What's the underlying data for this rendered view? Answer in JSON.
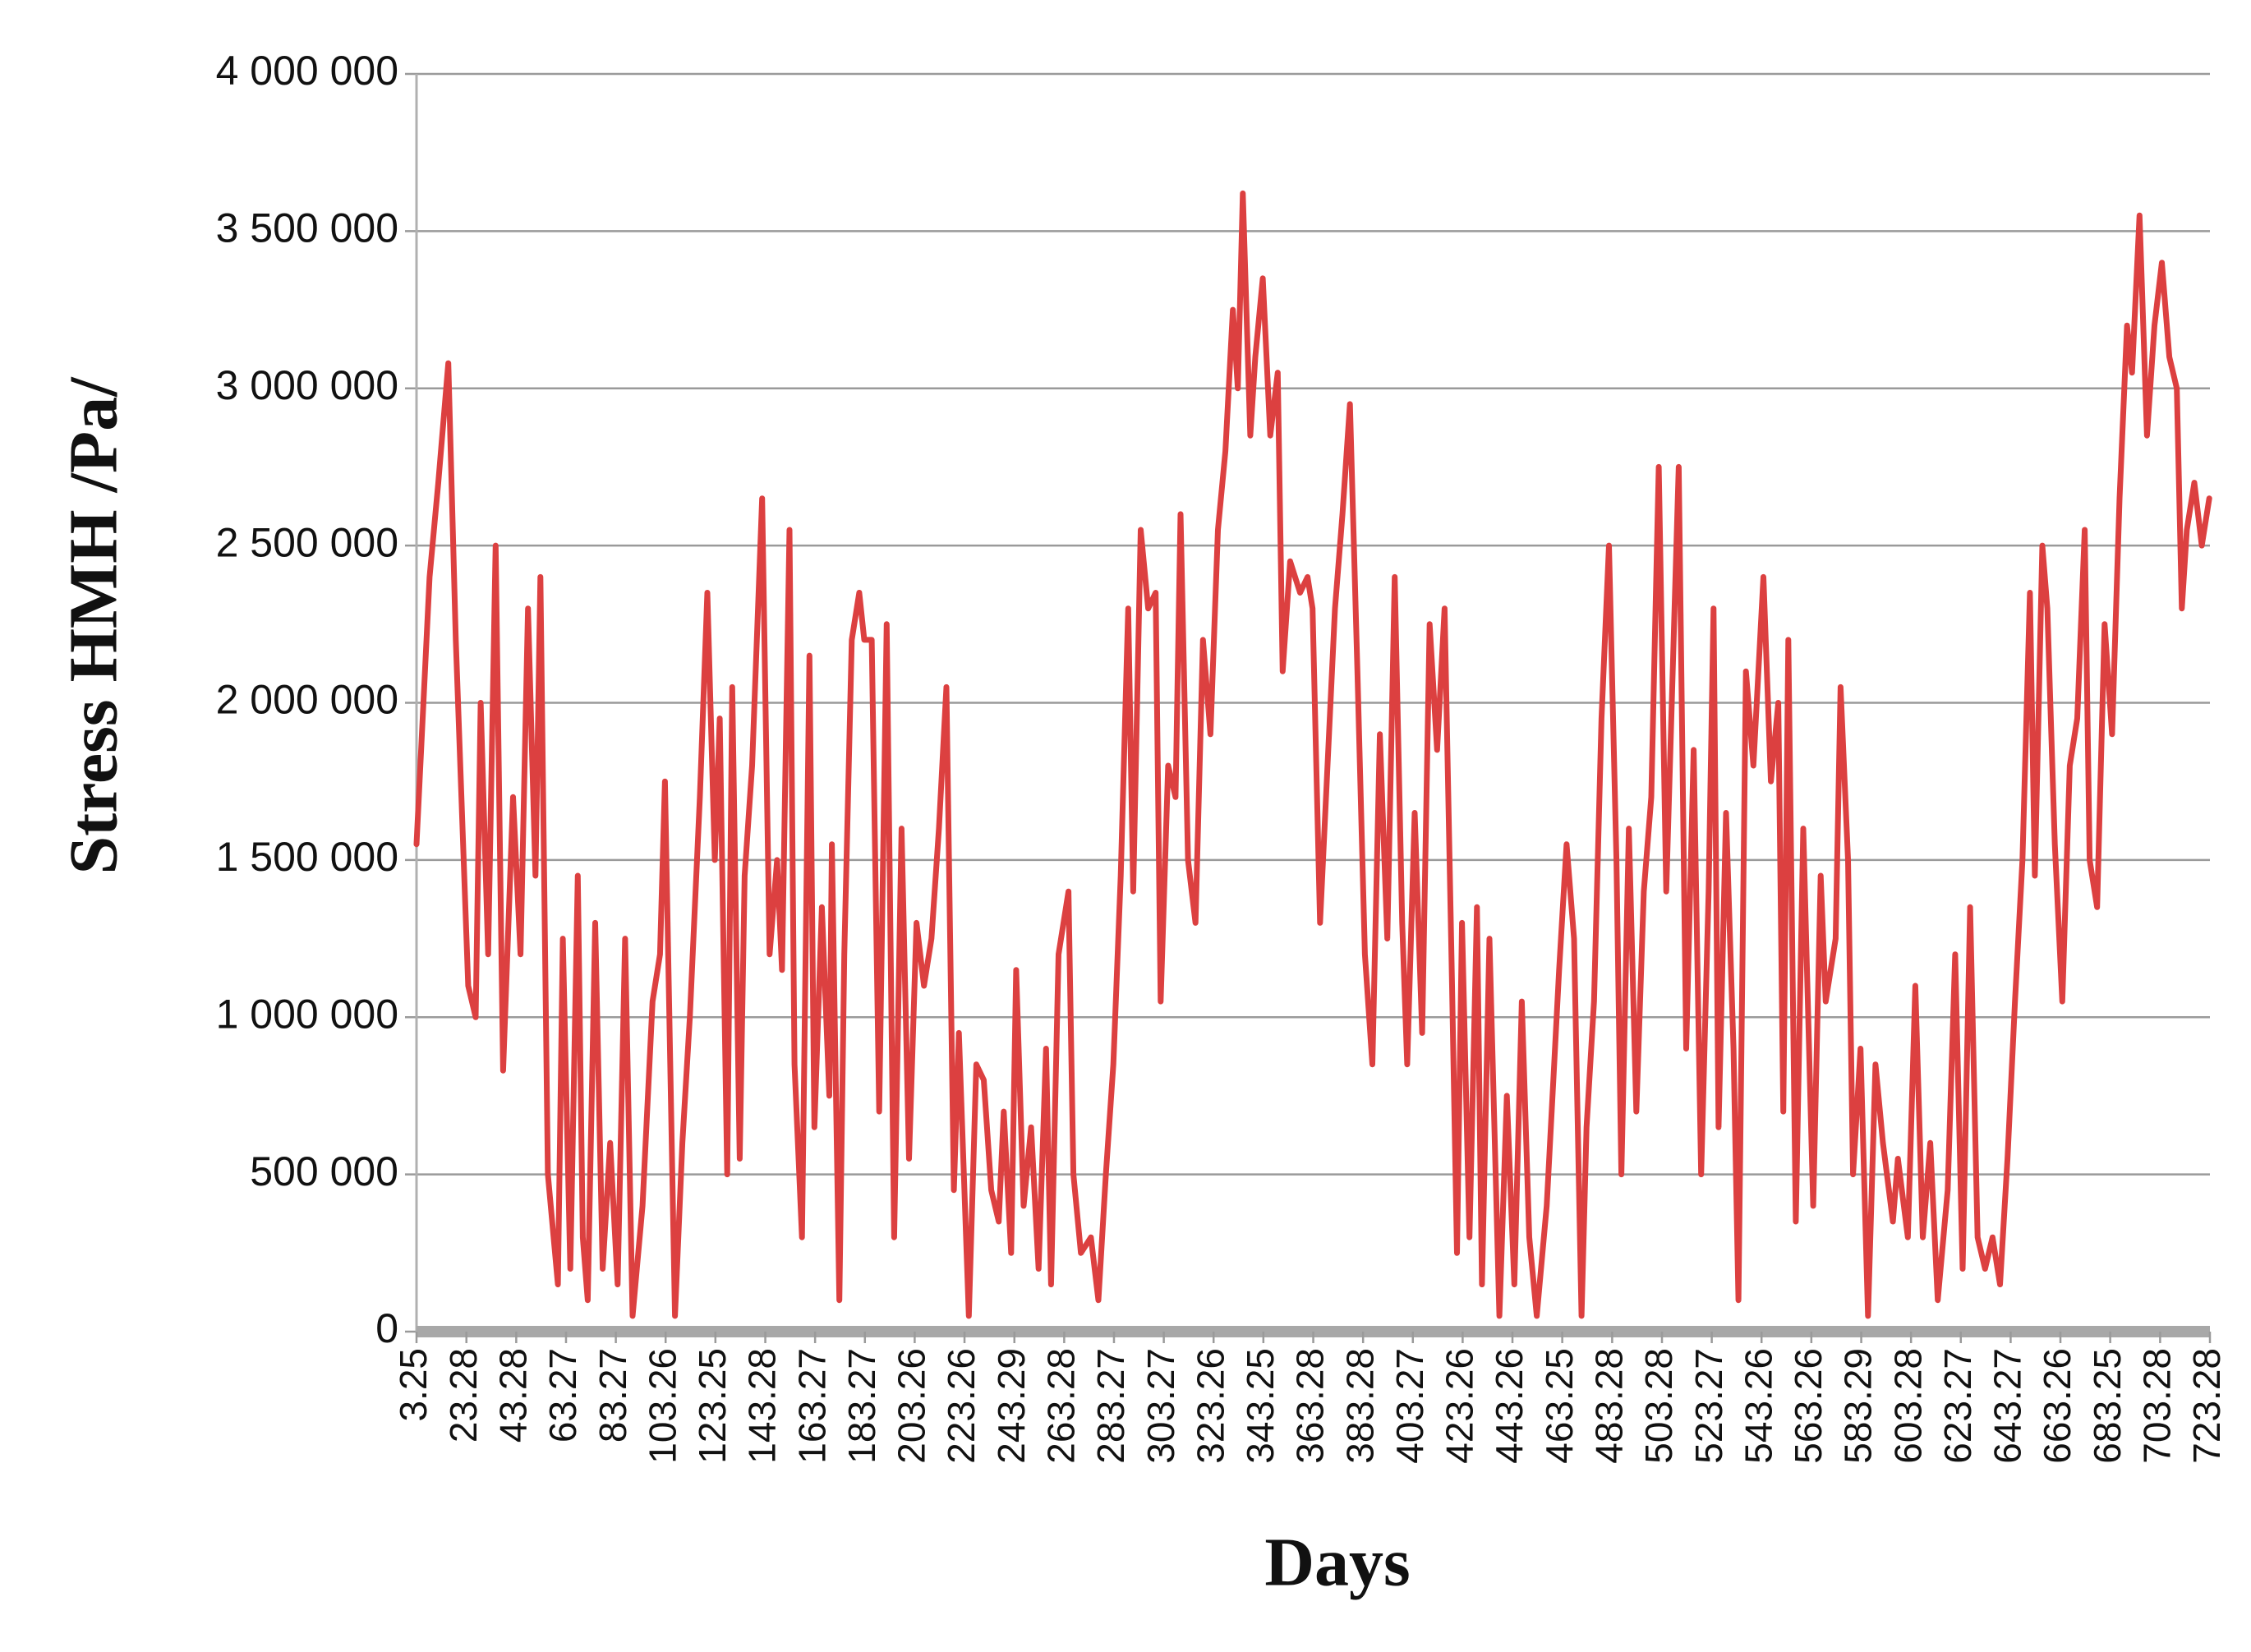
{
  "chart_data": {
    "type": "line",
    "xlabel": "Days",
    "ylabel": "Stress HMH /Pa/",
    "color": "#dc4040",
    "grid": true,
    "xlim": [
      3.25,
      723.28
    ],
    "ylim": [
      0,
      4000000
    ],
    "xticks": [
      3.25,
      23.28,
      43.28,
      63.27,
      83.27,
      103.26,
      123.25,
      143.28,
      163.27,
      183.27,
      203.26,
      223.26,
      243.29,
      263.28,
      283.27,
      303.27,
      323.26,
      343.25,
      363.28,
      383.28,
      403.27,
      423.26,
      443.26,
      463.25,
      483.28,
      503.28,
      523.27,
      543.26,
      563.26,
      583.29,
      603.28,
      623.27,
      643.27,
      663.26,
      683.25,
      703.28,
      723.28
    ],
    "yticks": [
      {
        "value": 0,
        "label": "0"
      },
      {
        "value": 500000,
        "label": "500 000"
      },
      {
        "value": 1000000,
        "label": "1 000 000"
      },
      {
        "value": 1500000,
        "label": "1 500 000"
      },
      {
        "value": 2000000,
        "label": "2 000 000"
      },
      {
        "value": 2500000,
        "label": "2 500 000"
      },
      {
        "value": 3000000,
        "label": "3 000 000"
      },
      {
        "value": 3500000,
        "label": "3 500 000"
      },
      {
        "value": 4000000,
        "label": "4 000 000"
      }
    ],
    "x": [
      3.25,
      8.5,
      12,
      16,
      19,
      24,
      27,
      29,
      32,
      35,
      38,
      42,
      45,
      48,
      51,
      53,
      56,
      60,
      62,
      65,
      68,
      70,
      72,
      75,
      78,
      81,
      84,
      87,
      90,
      94,
      98,
      101,
      103,
      107,
      110,
      113,
      117,
      120,
      123,
      125,
      128,
      130,
      133,
      135,
      138,
      142,
      145,
      148,
      150,
      153,
      155,
      158,
      161,
      163,
      166,
      169,
      170,
      173,
      175,
      178,
      181,
      183,
      186,
      189,
      192,
      195,
      198,
      201,
      204,
      207,
      210,
      213,
      216,
      219,
      221,
      225,
      228,
      231,
      234,
      237,
      239,
      242,
      244,
      247,
      250,
      253,
      256,
      258,
      261,
      265,
      267,
      270,
      274,
      277,
      280,
      283,
      286,
      289,
      291,
      294,
      297,
      300,
      302,
      305,
      308,
      310,
      313,
      316,
      319,
      322,
      325,
      328,
      331,
      333,
      335,
      338,
      340,
      343,
      346,
      349,
      351,
      354,
      358,
      361,
      363,
      366,
      369,
      372,
      375,
      378,
      381,
      384,
      387,
      390,
      393,
      396,
      399,
      401,
      404,
      407,
      410,
      413,
      416,
      419,
      421,
      423,
      426,
      429,
      431,
      434,
      438,
      441,
      444,
      447,
      450,
      453,
      457,
      460,
      462,
      465,
      468,
      471,
      473,
      476,
      479,
      482,
      485,
      487,
      490,
      493,
      496,
      499,
      502,
      505,
      510,
      513,
      516,
      519,
      522,
      524,
      526,
      529,
      532,
      534,
      537,
      540,
      544,
      547,
      550,
      552,
      554,
      557,
      560,
      564,
      567,
      569,
      573,
      575,
      578,
      580,
      583,
      586,
      589,
      592,
      596,
      598,
      602,
      605,
      608,
      611,
      614,
      618,
      621,
      624,
      627,
      630,
      633,
      636,
      639,
      642,
      645,
      648,
      651,
      653,
      656,
      658,
      661,
      664,
      667,
      670,
      673,
      675,
      678,
      681,
      684,
      687,
      690,
      692,
      695,
      698,
      701,
      704,
      707,
      710,
      712,
      714,
      717,
      720,
      723
    ],
    "series": [
      {
        "name": "Stress HMH",
        "color": "#dc4040",
        "values": [
          1550000,
          2400000,
          2700000,
          3080000,
          2200000,
          1100000,
          1000000,
          2000000,
          1200000,
          2500000,
          830000,
          1700000,
          1200000,
          2300000,
          1450000,
          2400000,
          500000,
          150000,
          1250000,
          200000,
          1450000,
          300000,
          100000,
          1300000,
          200000,
          600000,
          150000,
          1250000,
          50000,
          400000,
          1050000,
          1200000,
          1750000,
          50000,
          600000,
          1000000,
          1700000,
          2350000,
          1500000,
          1950000,
          500000,
          2050000,
          550000,
          1450000,
          1800000,
          2650000,
          1200000,
          1500000,
          1150000,
          2550000,
          850000,
          300000,
          2150000,
          650000,
          1350000,
          750000,
          1550000,
          100000,
          1200000,
          2200000,
          2350000,
          2200000,
          2200000,
          700000,
          2250000,
          300000,
          1600000,
          550000,
          1300000,
          1100000,
          1250000,
          1600000,
          2050000,
          450000,
          950000,
          50000,
          850000,
          800000,
          450000,
          350000,
          700000,
          250000,
          1150000,
          400000,
          650000,
          200000,
          900000,
          150000,
          1200000,
          1400000,
          500000,
          250000,
          300000,
          100000,
          500000,
          850000,
          1450000,
          2300000,
          1400000,
          2550000,
          2300000,
          2350000,
          1050000,
          1800000,
          1700000,
          2600000,
          1500000,
          1300000,
          2200000,
          1900000,
          2550000,
          2800000,
          3250000,
          3000000,
          3620000,
          2850000,
          3100000,
          3350000,
          2850000,
          3050000,
          2100000,
          2450000,
          2350000,
          2400000,
          2300000,
          1300000,
          1800000,
          2300000,
          2600000,
          2950000,
          2100000,
          1200000,
          850000,
          1900000,
          1250000,
          2400000,
          1300000,
          850000,
          1650000,
          950000,
          2250000,
          1850000,
          2300000,
          1100000,
          250000,
          1300000,
          300000,
          1350000,
          150000,
          1250000,
          50000,
          750000,
          150000,
          1050000,
          300000,
          50000,
          400000,
          850000,
          1150000,
          1550000,
          1250000,
          50000,
          650000,
          1050000,
          1950000,
          2500000,
          1500000,
          500000,
          1600000,
          700000,
          1400000,
          1700000,
          2750000,
          1400000,
          2750000,
          900000,
          1850000,
          500000,
          1400000,
          2300000,
          650000,
          1650000,
          900000,
          100000,
          2100000,
          1800000,
          2400000,
          1750000,
          2000000,
          700000,
          2200000,
          350000,
          1600000,
          400000,
          1450000,
          1050000,
          1250000,
          2050000,
          1500000,
          500000,
          900000,
          50000,
          850000,
          600000,
          350000,
          550000,
          300000,
          1100000,
          300000,
          600000,
          100000,
          450000,
          1200000,
          200000,
          1350000,
          300000,
          200000,
          300000,
          150000,
          550000,
          1050000,
          1500000,
          2350000,
          1450000,
          2500000,
          2300000,
          1550000,
          1050000,
          1800000,
          1950000,
          2550000,
          1500000,
          1350000,
          2250000,
          1900000,
          2650000,
          3200000,
          3050000,
          3550000,
          2850000,
          3200000,
          3400000,
          3100000,
          3000000,
          2300000,
          2550000,
          2700000,
          2500000,
          2650000
        ]
      }
    ]
  }
}
